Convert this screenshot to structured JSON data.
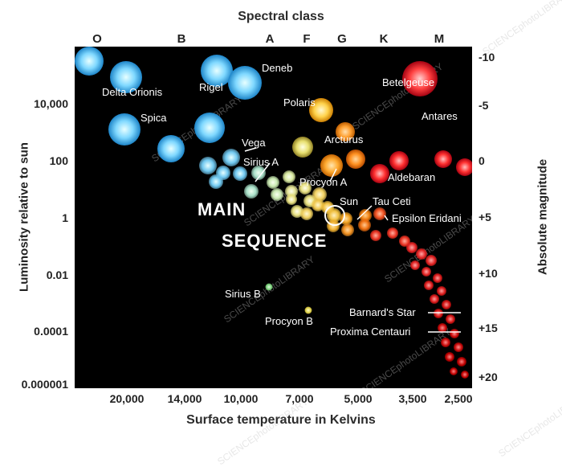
{
  "top_axis": {
    "title": "Spectral class",
    "classes": [
      "O",
      "B",
      "A",
      "F",
      "G",
      "K",
      "M"
    ]
  },
  "bottom_axis": {
    "title": "Surface temperature in Kelvins",
    "ticks": [
      "20,000",
      "14,000",
      "10,000",
      "7,000",
      "5,000",
      "3,500",
      "2,500"
    ]
  },
  "left_axis": {
    "title": "Luminosity relative to sun",
    "ticks": [
      "10,000",
      "100",
      "1",
      "0.01",
      "0.0001",
      "0.000001"
    ]
  },
  "right_axis": {
    "title": "Absolute magnitude",
    "ticks": [
      "-10",
      "-5",
      "0",
      "+5",
      "+10",
      "+15",
      "+20"
    ]
  },
  "region_labels": [
    "MAIN",
    "SEQUENCE"
  ],
  "star_labels": [
    "Delta Orionis",
    "Rigel",
    "Deneb",
    "Betelgeuse",
    "Polaris",
    "Antares",
    "Spica",
    "Vega",
    "Sirius A",
    "Arcturus",
    "Aldebaran",
    "Procyon A",
    "Sun",
    "Tau Ceti",
    "Epsilon Eridani",
    "Sirius B",
    "Procyon B",
    "Barnard's Star",
    "Proxima Centauri"
  ],
  "watermark": "SCIENCEphotoLIBRARY"
}
